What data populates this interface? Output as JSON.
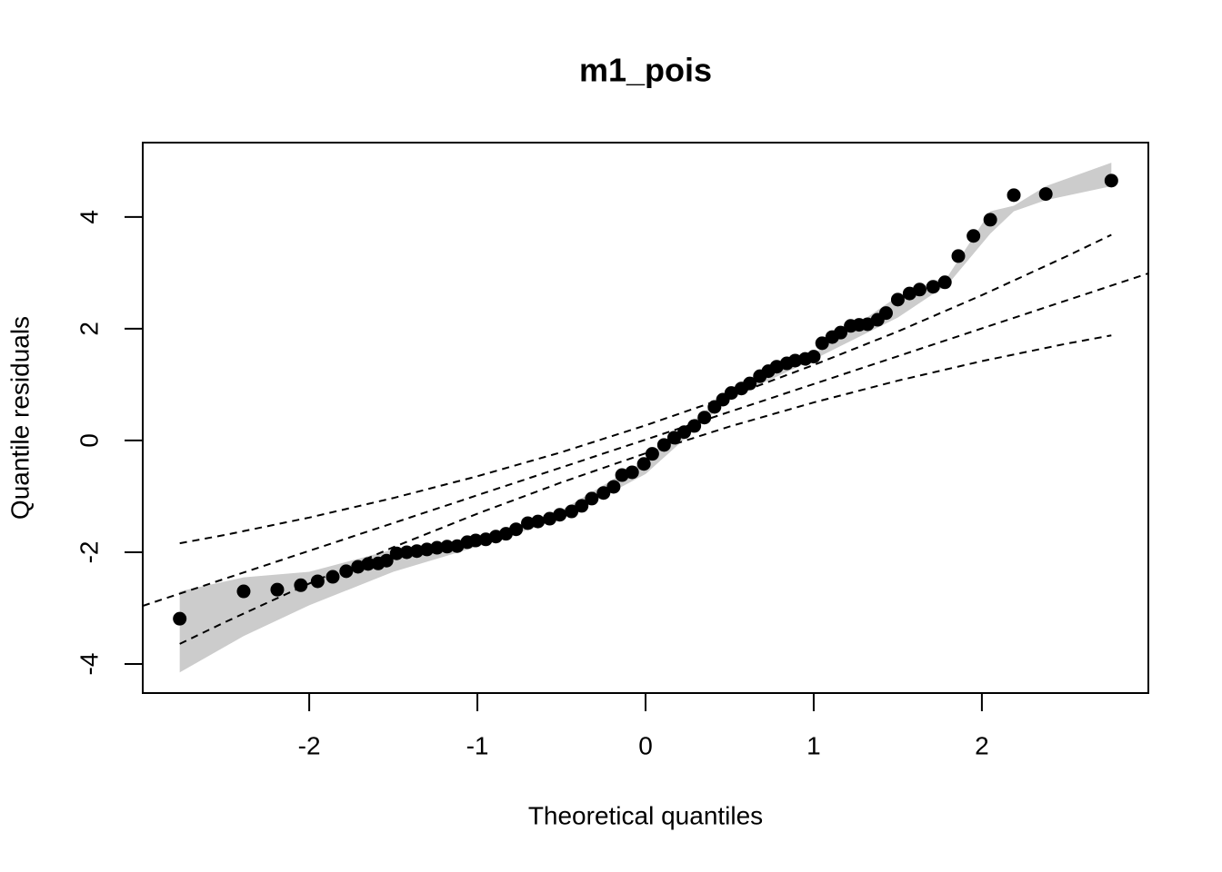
{
  "chart_data": {
    "type": "scatter",
    "title": "m1_pois",
    "xlabel": "Theoretical quantiles",
    "ylabel": "Quantile residuals",
    "xlim": [
      -2.99,
      2.99
    ],
    "ylim": [
      -4.52,
      5.33
    ],
    "xticks": [
      -2,
      -1,
      0,
      1,
      2
    ],
    "yticks": [
      -4,
      -2,
      0,
      2,
      4
    ],
    "points": {
      "color": "#000000",
      "x": [
        -2.77,
        -2.39,
        -2.19,
        -2.05,
        -1.95,
        -1.86,
        -1.78,
        -1.71,
        -1.65,
        -1.59,
        -1.54,
        -1.48,
        -1.42,
        -1.36,
        -1.3,
        -1.24,
        -1.18,
        -1.12,
        -1.06,
        -1.01,
        -0.95,
        -0.89,
        -0.83,
        -0.77,
        -0.7,
        -0.64,
        -0.57,
        -0.51,
        -0.44,
        -0.38,
        -0.32,
        -0.25,
        -0.19,
        -0.14,
        -0.08,
        -0.01,
        0.04,
        0.11,
        0.17,
        0.23,
        0.29,
        0.35,
        0.41,
        0.46,
        0.51,
        0.57,
        0.62,
        0.68,
        0.73,
        0.78,
        0.84,
        0.89,
        0.95,
        1.0,
        1.05,
        1.11,
        1.16,
        1.22,
        1.27,
        1.32,
        1.38,
        1.43,
        1.5,
        1.57,
        1.63,
        1.71,
        1.78,
        1.86,
        1.95,
        2.05,
        2.19,
        2.38,
        2.77
      ],
      "y": [
        -3.19,
        -2.7,
        -2.67,
        -2.59,
        -2.52,
        -2.44,
        -2.34,
        -2.26,
        -2.21,
        -2.2,
        -2.15,
        -2.02,
        -2.0,
        -1.98,
        -1.95,
        -1.92,
        -1.9,
        -1.89,
        -1.82,
        -1.79,
        -1.77,
        -1.72,
        -1.67,
        -1.59,
        -1.48,
        -1.45,
        -1.4,
        -1.33,
        -1.27,
        -1.17,
        -1.04,
        -0.94,
        -0.83,
        -0.62,
        -0.57,
        -0.42,
        -0.24,
        -0.08,
        0.05,
        0.15,
        0.26,
        0.41,
        0.6,
        0.73,
        0.85,
        0.93,
        1.02,
        1.15,
        1.24,
        1.32,
        1.38,
        1.43,
        1.46,
        1.5,
        1.74,
        1.85,
        1.93,
        2.05,
        2.07,
        2.08,
        2.16,
        2.28,
        2.52,
        2.63,
        2.7,
        2.75,
        2.83,
        3.3,
        3.66,
        3.95,
        4.39,
        4.41,
        4.65
      ]
    },
    "band": {
      "color": "#cccccc",
      "x": [
        -2.77,
        -2.39,
        -2.0,
        -1.5,
        -1.0,
        -0.5,
        0,
        0.5,
        1.0,
        1.5,
        1.8,
        2.05,
        2.19,
        2.38,
        2.77
      ],
      "upper": [
        -2.7,
        -2.45,
        -2.35,
        -1.95,
        -1.75,
        -1.25,
        -0.35,
        0.88,
        1.55,
        2.58,
        2.95,
        4.1,
        4.2,
        4.55,
        4.97
      ],
      "lower": [
        -4.15,
        -3.5,
        -2.95,
        -2.35,
        -1.9,
        -1.4,
        -0.6,
        0.75,
        1.45,
        2.2,
        2.8,
        3.7,
        4.1,
        4.3,
        4.55
      ]
    },
    "lines": [
      {
        "color": "#000000",
        "x": [
          -2.99,
          2.99
        ],
        "y": [
          -2.96,
          2.99
        ]
      },
      {
        "color": "#000000",
        "x": [
          -2.77,
          -2.5,
          -2,
          -1.5,
          -1,
          -0.5,
          0,
          0.5,
          1,
          1.5,
          2,
          2.5,
          2.77
        ],
        "y": [
          -1.84,
          -1.69,
          -1.38,
          -1.03,
          -0.64,
          -0.21,
          0.27,
          0.79,
          1.35,
          1.95,
          2.6,
          3.29,
          3.68
        ]
      },
      {
        "color": "#000000",
        "x": [
          -2.77,
          -2.5,
          -2,
          -1.5,
          -1,
          -0.5,
          0,
          0.5,
          1,
          1.5,
          2,
          2.5,
          2.77
        ],
        "y": [
          -3.64,
          -3.25,
          -2.56,
          -1.91,
          -1.31,
          -0.75,
          -0.23,
          0.25,
          0.68,
          1.07,
          1.42,
          1.73,
          1.88
        ]
      }
    ]
  }
}
